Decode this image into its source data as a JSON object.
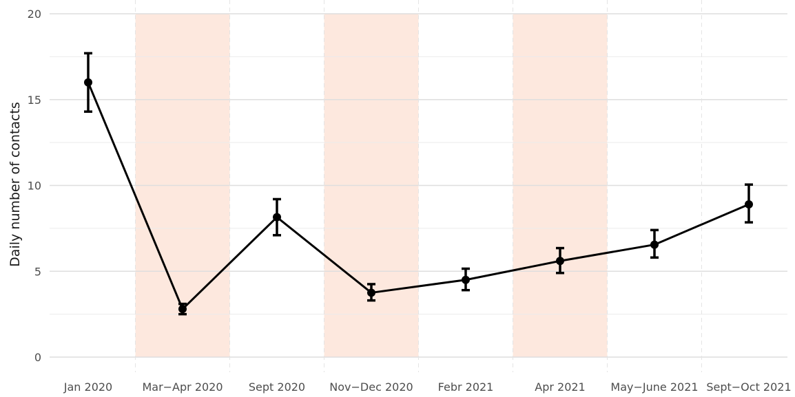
{
  "chart_data": {
    "type": "line",
    "title": "",
    "xlabel": "",
    "ylabel": "Daily number of contacts",
    "ylim": [
      0,
      20
    ],
    "yticks": [
      0,
      5,
      10,
      15,
      20
    ],
    "grid": true,
    "categories": [
      "Jan 2020",
      "Mar−Apr 2020",
      "Sept 2020",
      "Nov−Dec 2020",
      "Febr 2021",
      "Apr 2021",
      "May−June 2021",
      "Sept−Oct 2021"
    ],
    "series": [
      {
        "values": [
          16.0,
          2.8,
          8.15,
          3.75,
          4.5,
          5.6,
          6.55,
          8.9
        ],
        "lower": [
          14.3,
          2.5,
          7.1,
          3.3,
          3.9,
          4.9,
          5.8,
          7.85
        ],
        "upper": [
          17.7,
          3.1,
          9.2,
          4.25,
          5.15,
          6.35,
          7.4,
          10.05
        ],
        "color": "#000000"
      }
    ],
    "shaded_categories": [
      "Mar−Apr 2020",
      "Nov−Dec 2020",
      "Apr 2021"
    ],
    "shade_color": "#fde8de"
  }
}
